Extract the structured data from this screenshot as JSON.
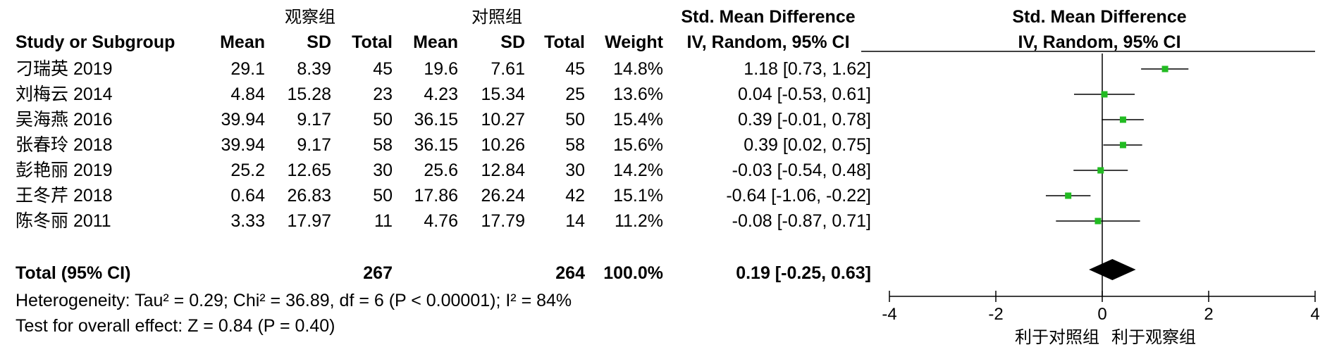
{
  "group_headers": {
    "experimental": "观察组",
    "control": "对照组"
  },
  "columns": {
    "study": "Study or Subgroup",
    "mean_e": "Mean",
    "sd_e": "SD",
    "total_e": "Total",
    "mean_c": "Mean",
    "sd_c": "SD",
    "total_c": "Total",
    "weight": "Weight",
    "effect_title": "Std. Mean Difference",
    "effect_sub": "IV, Random, 95% CI"
  },
  "plot_header": {
    "title": "Std. Mean Difference",
    "sub": "IV, Random, 95% CI"
  },
  "rows": [
    {
      "study": "刁瑞英 2019",
      "mean_e": "29.1",
      "sd_e": "8.39",
      "total_e": "45",
      "mean_c": "19.6",
      "sd_c": "7.61",
      "total_c": "45",
      "weight": "14.8%",
      "ci": "1.18 [0.73, 1.62]"
    },
    {
      "study": "刘梅云 2014",
      "mean_e": "4.84",
      "sd_e": "15.28",
      "total_e": "23",
      "mean_c": "4.23",
      "sd_c": "15.34",
      "total_c": "25",
      "weight": "13.6%",
      "ci": "0.04 [-0.53, 0.61]"
    },
    {
      "study": "吴海燕 2016",
      "mean_e": "39.94",
      "sd_e": "9.17",
      "total_e": "50",
      "mean_c": "36.15",
      "sd_c": "10.27",
      "total_c": "50",
      "weight": "15.4%",
      "ci": "0.39 [-0.01, 0.78]"
    },
    {
      "study": "张春玲 2018",
      "mean_e": "39.94",
      "sd_e": "9.17",
      "total_e": "58",
      "mean_c": "36.15",
      "sd_c": "10.26",
      "total_c": "58",
      "weight": "15.6%",
      "ci": "0.39 [0.02, 0.75]"
    },
    {
      "study": "彭艳丽 2019",
      "mean_e": "25.2",
      "sd_e": "12.65",
      "total_e": "30",
      "mean_c": "25.6",
      "sd_c": "12.84",
      "total_c": "30",
      "weight": "14.2%",
      "ci": "-0.03 [-0.54, 0.48]"
    },
    {
      "study": "王冬芹 2018",
      "mean_e": "0.64",
      "sd_e": "26.83",
      "total_e": "50",
      "mean_c": "17.86",
      "sd_c": "26.24",
      "total_c": "42",
      "weight": "15.1%",
      "ci": "-0.64 [-1.06, -0.22]"
    },
    {
      "study": "陈冬丽 2011",
      "mean_e": "3.33",
      "sd_e": "17.97",
      "total_e": "11",
      "mean_c": "4.76",
      "sd_c": "17.79",
      "total_c": "14",
      "weight": "11.2%",
      "ci": "-0.08 [-0.87, 0.71]"
    }
  ],
  "total": {
    "label": "Total (95% CI)",
    "total_e": "267",
    "total_c": "264",
    "weight": "100.0%",
    "ci": "0.19 [-0.25, 0.63]"
  },
  "heterogeneity": "Heterogeneity: Tau² = 0.29; Chi² = 36.89, df = 6 (P < 0.00001); I² = 84%",
  "overall_effect": "Test for overall effect: Z = 0.84 (P = 0.40)",
  "favours": {
    "left": "利于对照组",
    "right": "利于观察组"
  },
  "colors": {
    "study_marker": "#22bb22",
    "summary_diamond": "#000000",
    "lines": "#000000"
  },
  "chart_data": {
    "type": "forest",
    "measure": "Std. Mean Difference",
    "x_ticks": [
      -4,
      -2,
      0,
      2,
      4
    ],
    "xlim": [
      -4,
      4
    ],
    "studies": [
      {
        "name": "刁瑞英 2019",
        "est": 1.18,
        "lo": 0.73,
        "hi": 1.62,
        "weight": 14.8
      },
      {
        "name": "刘梅云 2014",
        "est": 0.04,
        "lo": -0.53,
        "hi": 0.61,
        "weight": 13.6
      },
      {
        "name": "吴海燕 2016",
        "est": 0.39,
        "lo": -0.01,
        "hi": 0.78,
        "weight": 15.4
      },
      {
        "name": "张春玲 2018",
        "est": 0.39,
        "lo": 0.02,
        "hi": 0.75,
        "weight": 15.6
      },
      {
        "name": "彭艳丽 2019",
        "est": -0.03,
        "lo": -0.54,
        "hi": 0.48,
        "weight": 14.2
      },
      {
        "name": "王冬芹 2018",
        "est": -0.64,
        "lo": -1.06,
        "hi": -0.22,
        "weight": 15.1
      },
      {
        "name": "陈冬丽 2011",
        "est": -0.08,
        "lo": -0.87,
        "hi": 0.71,
        "weight": 11.2
      }
    ],
    "overall": {
      "est": 0.19,
      "lo": -0.25,
      "hi": 0.63
    }
  }
}
